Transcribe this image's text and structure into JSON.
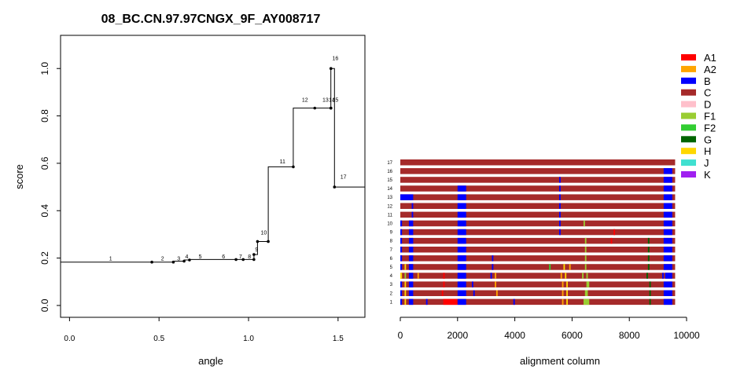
{
  "chart_data": [
    {
      "type": "line",
      "title": "08_BC.CN.97.97CNGX_9F_AY008717",
      "xlabel": "angle",
      "ylabel": "score",
      "xlim": [
        -0.05,
        1.65
      ],
      "ylim": [
        -0.05,
        1.14
      ],
      "x_ticks": [
        0.0,
        0.5,
        1.0,
        1.5
      ],
      "x_tick_labels": [
        "0.0",
        "0.5",
        "1.0",
        "1.5"
      ],
      "y_ticks": [
        0.0,
        0.2,
        0.4,
        0.6,
        0.8,
        1.0
      ],
      "y_tick_labels": [
        "0.0",
        "0.2",
        "0.4",
        "0.6",
        "0.8",
        "1.0"
      ],
      "grid": false,
      "step_path": [
        [
          -0.05,
          0.183
        ],
        [
          0.46,
          0.183
        ],
        [
          0.58,
          0.183
        ],
        [
          0.58,
          0.187
        ],
        [
          0.64,
          0.187
        ],
        [
          0.64,
          0.192
        ],
        [
          0.67,
          0.192
        ],
        [
          0.67,
          0.194
        ],
        [
          0.93,
          0.194
        ],
        [
          0.97,
          0.194
        ],
        [
          1.03,
          0.194
        ],
        [
          1.03,
          0.215
        ],
        [
          1.05,
          0.215
        ],
        [
          1.05,
          0.27
        ],
        [
          1.11,
          0.27
        ],
        [
          1.11,
          0.585
        ],
        [
          1.25,
          0.585
        ],
        [
          1.25,
          0.833
        ],
        [
          1.46,
          0.833
        ],
        [
          1.46,
          1.0
        ],
        [
          1.48,
          1.0
        ],
        [
          1.48,
          0.5
        ],
        [
          1.65,
          0.5
        ]
      ],
      "points": [
        {
          "label": "1",
          "x": 0.46,
          "y": 0.183,
          "label_x": 0.23,
          "label_y": 0.19
        },
        {
          "label": "2",
          "x": 0.58,
          "y": 0.183,
          "label_x": 0.52,
          "label_y": 0.19
        },
        {
          "label": "3",
          "x": 0.64,
          "y": 0.187,
          "label_x": 0.61,
          "label_y": 0.19
        },
        {
          "label": "4",
          "x": 0.67,
          "y": 0.192,
          "label_x": 0.655,
          "label_y": 0.198
        },
        {
          "label": "5",
          "x": 0.93,
          "y": 0.194,
          "label_x": 0.73,
          "label_y": 0.198
        },
        {
          "label": "6",
          "x": 0.97,
          "y": 0.194,
          "label_x": 0.86,
          "label_y": 0.198
        },
        {
          "label": "7",
          "x": 1.03,
          "y": 0.194,
          "label_x": 0.955,
          "label_y": 0.198
        },
        {
          "label": "8",
          "x": 1.03,
          "y": 0.215,
          "label_x": 1.005,
          "label_y": 0.198
        },
        {
          "label": "9",
          "x": 1.05,
          "y": 0.27,
          "label_x": 1.045,
          "label_y": 0.228
        },
        {
          "label": "10",
          "x": 1.11,
          "y": 0.27,
          "label_x": 1.085,
          "label_y": 0.3
        },
        {
          "label": "11",
          "x": 1.25,
          "y": 0.585,
          "label_x": 1.19,
          "label_y": 0.6
        },
        {
          "label": "12",
          "x": 1.37,
          "y": 0.833,
          "label_x": 1.315,
          "label_y": 0.86
        },
        {
          "label": "13",
          "x": 1.46,
          "y": 0.833,
          "label_x": 1.43,
          "label_y": 0.86
        },
        {
          "label": "14",
          "x": 1.46,
          "y": 0.833,
          "label_x": 1.465,
          "label_y": 0.86
        },
        {
          "label": "15",
          "x": 1.46,
          "y": 0.833,
          "label_x": 1.485,
          "label_y": 0.86
        },
        {
          "label": "16",
          "x": 1.46,
          "y": 1.0,
          "label_x": 1.485,
          "label_y": 1.035
        },
        {
          "label": "17",
          "x": 1.48,
          "y": 0.5,
          "label_x": 1.53,
          "label_y": 0.535
        }
      ]
    },
    {
      "type": "bar",
      "xlabel": "alignment column",
      "ylabel": "",
      "xlim": [
        0,
        10000
      ],
      "x_ticks": [
        0,
        2000,
        4000,
        6000,
        8000,
        10000
      ],
      "x_tick_labels": [
        "0",
        "2000",
        "4000",
        "6000",
        "8000",
        "10000"
      ],
      "row_length": 9600,
      "base_subtype": "C",
      "legend_position": "top-right",
      "legend": [
        {
          "name": "A1",
          "color": "#ff0000"
        },
        {
          "name": "A2",
          "color": "#ffa500"
        },
        {
          "name": "B",
          "color": "#0000ff"
        },
        {
          "name": "C",
          "color": "#a52a2a"
        },
        {
          "name": "D",
          "color": "#ffc0cb"
        },
        {
          "name": "F1",
          "color": "#9acd32"
        },
        {
          "name": "F2",
          "color": "#32cd32"
        },
        {
          "name": "G",
          "color": "#006400"
        },
        {
          "name": "H",
          "color": "#ffd700"
        },
        {
          "name": "J",
          "color": "#40e0d0"
        },
        {
          "name": "K",
          "color": "#a020f0"
        }
      ],
      "rows": [
        {
          "label": "17",
          "segments": []
        },
        {
          "label": "16",
          "segments": [
            [
              9200,
              9500,
              "B"
            ]
          ]
        },
        {
          "label": "15",
          "segments": [
            [
              5550,
              5600,
              "B"
            ],
            [
              9200,
              9500,
              "B"
            ]
          ]
        },
        {
          "label": "14",
          "segments": [
            [
              2000,
              2300,
              "B"
            ],
            [
              5550,
              5600,
              "B"
            ],
            [
              9200,
              9500,
              "B"
            ]
          ]
        },
        {
          "label": "13",
          "segments": [
            [
              0,
              450,
              "B"
            ],
            [
              2000,
              2300,
              "B"
            ],
            [
              5550,
              5600,
              "B"
            ],
            [
              9200,
              9500,
              "B"
            ]
          ]
        },
        {
          "label": "12",
          "segments": [
            [
              400,
              450,
              "B"
            ],
            [
              2000,
              2300,
              "B"
            ],
            [
              5550,
              5600,
              "B"
            ],
            [
              9200,
              9500,
              "B"
            ]
          ]
        },
        {
          "label": "11",
          "segments": [
            [
              400,
              450,
              "B"
            ],
            [
              2000,
              2300,
              "B"
            ],
            [
              5550,
              5600,
              "B"
            ],
            [
              9200,
              9500,
              "B"
            ]
          ]
        },
        {
          "label": "10",
          "segments": [
            [
              0,
              60,
              "B"
            ],
            [
              300,
              450,
              "B"
            ],
            [
              2000,
              2300,
              "B"
            ],
            [
              5550,
              5600,
              "B"
            ],
            [
              6400,
              6450,
              "F1"
            ],
            [
              9200,
              9500,
              "B"
            ]
          ]
        },
        {
          "label": "9",
          "segments": [
            [
              0,
              60,
              "B"
            ],
            [
              300,
              450,
              "B"
            ],
            [
              2000,
              2300,
              "B"
            ],
            [
              5550,
              5600,
              "B"
            ],
            [
              7450,
              7500,
              "A1"
            ],
            [
              9200,
              9500,
              "B"
            ]
          ]
        },
        {
          "label": "8",
          "segments": [
            [
              0,
              60,
              "B"
            ],
            [
              300,
              450,
              "B"
            ],
            [
              2000,
              2300,
              "B"
            ],
            [
              6450,
              6500,
              "F1"
            ],
            [
              7350,
              7400,
              "A1"
            ],
            [
              8650,
              8700,
              "G"
            ],
            [
              9200,
              9500,
              "B"
            ]
          ]
        },
        {
          "label": "7",
          "segments": [
            [
              0,
              60,
              "B"
            ],
            [
              300,
              450,
              "B"
            ],
            [
              2000,
              2300,
              "B"
            ],
            [
              6450,
              6500,
              "F1"
            ],
            [
              8650,
              8700,
              "G"
            ],
            [
              9200,
              9500,
              "B"
            ]
          ]
        },
        {
          "label": "6",
          "segments": [
            [
              0,
              60,
              "B"
            ],
            [
              300,
              450,
              "B"
            ],
            [
              2000,
              2300,
              "B"
            ],
            [
              3200,
              3250,
              "B"
            ],
            [
              6450,
              6500,
              "F1"
            ],
            [
              8650,
              8700,
              "G"
            ],
            [
              9200,
              9500,
              "B"
            ]
          ]
        },
        {
          "label": "5",
          "segments": [
            [
              0,
              60,
              "B"
            ],
            [
              150,
              200,
              "H"
            ],
            [
              300,
              450,
              "B"
            ],
            [
              2000,
              2300,
              "B"
            ],
            [
              3200,
              3250,
              "B"
            ],
            [
              5200,
              5250,
              "F2"
            ],
            [
              5700,
              5750,
              "H"
            ],
            [
              5900,
              5950,
              "A2"
            ],
            [
              6450,
              6500,
              "F1"
            ],
            [
              8650,
              8700,
              "G"
            ],
            [
              9200,
              9500,
              "B"
            ]
          ]
        },
        {
          "label": "4",
          "segments": [
            [
              0,
              60,
              "H"
            ],
            [
              150,
              200,
              "F1"
            ],
            [
              300,
              450,
              "B"
            ],
            [
              600,
              650,
              "A2"
            ],
            [
              1500,
              1550,
              "A1"
            ],
            [
              2000,
              2300,
              "B"
            ],
            [
              3150,
              3200,
              "B"
            ],
            [
              3300,
              3350,
              "A2"
            ],
            [
              5600,
              5650,
              "A2"
            ],
            [
              5750,
              5800,
              "H"
            ],
            [
              6350,
              6400,
              "F1"
            ],
            [
              6500,
              6550,
              "F1"
            ],
            [
              8600,
              8650,
              "G"
            ],
            [
              9150,
              9200,
              "B"
            ],
            [
              9250,
              9500,
              "B"
            ]
          ]
        },
        {
          "label": "3",
          "segments": [
            [
              0,
              60,
              "B"
            ],
            [
              150,
              200,
              "H"
            ],
            [
              300,
              450,
              "B"
            ],
            [
              1500,
              1550,
              "A1"
            ],
            [
              2000,
              2300,
              "B"
            ],
            [
              2500,
              2550,
              "B"
            ],
            [
              3300,
              3350,
              "A2"
            ],
            [
              5650,
              5700,
              "A2"
            ],
            [
              5800,
              5850,
              "H"
            ],
            [
              6500,
              6600,
              "F1"
            ],
            [
              8700,
              8750,
              "G"
            ],
            [
              9200,
              9500,
              "B"
            ]
          ]
        },
        {
          "label": "2",
          "segments": [
            [
              0,
              60,
              "B"
            ],
            [
              150,
              200,
              "H"
            ],
            [
              300,
              450,
              "B"
            ],
            [
              1450,
              1500,
              "A1"
            ],
            [
              2000,
              2300,
              "B"
            ],
            [
              2550,
              2600,
              "B"
            ],
            [
              3350,
              3400,
              "A2"
            ],
            [
              5650,
              5700,
              "A2"
            ],
            [
              5800,
              5850,
              "H"
            ],
            [
              6450,
              6550,
              "F1"
            ],
            [
              8700,
              8750,
              "G"
            ],
            [
              9200,
              9500,
              "B"
            ]
          ]
        },
        {
          "label": "1",
          "segments": [
            [
              0,
              60,
              "B"
            ],
            [
              150,
              200,
              "H"
            ],
            [
              300,
              450,
              "B"
            ],
            [
              900,
              950,
              "B"
            ],
            [
              1500,
              2000,
              "A1"
            ],
            [
              2000,
              2300,
              "B"
            ],
            [
              3950,
              4000,
              "B"
            ],
            [
              5650,
              5700,
              "A2"
            ],
            [
              5800,
              5850,
              "H"
            ],
            [
              6400,
              6600,
              "F1"
            ],
            [
              8700,
              8750,
              "G"
            ],
            [
              9200,
              9500,
              "B"
            ]
          ]
        }
      ]
    }
  ]
}
